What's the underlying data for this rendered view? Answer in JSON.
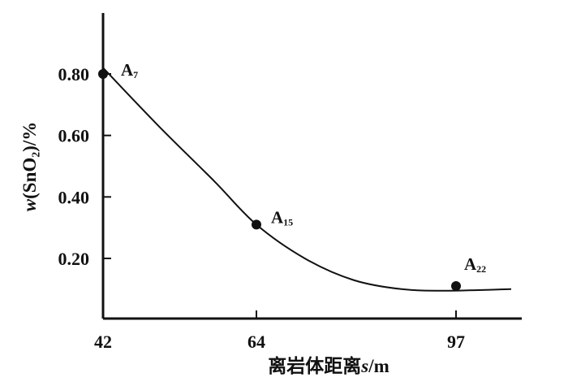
{
  "chart_data": {
    "type": "line",
    "xlabel": "离岩体距离s/m",
    "xlabel_parts": {
      "prefix": "离岩体距离",
      "var": "s",
      "suffix": "/m"
    },
    "ylabel": "w(SnO₂)/%",
    "ylabel_parts": {
      "var": "w",
      "rest": "(SnO₂)/%"
    },
    "x_ticks": [
      42,
      64,
      97
    ],
    "x_tick_labels": [
      "42",
      "64",
      "97"
    ],
    "y_ticks": [
      0.2,
      0.4,
      0.6,
      0.8
    ],
    "y_tick_labels": [
      "0.20",
      "0.40",
      "0.60",
      "0.80"
    ],
    "xlim": [
      42,
      100
    ],
    "ylim": [
      0,
      1.0
    ],
    "grid": false,
    "series": [
      {
        "type": "line",
        "x": [
          42,
          50,
          58,
          64,
          72,
          80,
          88,
          96,
          100
        ],
        "y": [
          0.82,
          0.63,
          0.45,
          0.31,
          0.2,
          0.13,
          0.1,
          0.095,
          0.1
        ]
      }
    ],
    "points": [
      {
        "label": "A",
        "sub": "7",
        "x": 42,
        "y": 0.8
      },
      {
        "label": "A",
        "sub": "15",
        "x": 64,
        "y": 0.31
      },
      {
        "label": "A",
        "sub": "22",
        "x": 97,
        "y": 0.11
      }
    ]
  }
}
